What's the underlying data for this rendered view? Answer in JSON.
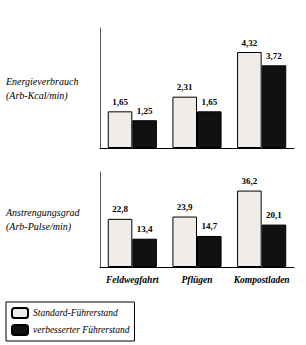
{
  "chart_data": [
    {
      "type": "bar",
      "ylabel": "Energieverbrauch\n(Arb-Kcal/min)",
      "categories": [
        null,
        null,
        null
      ],
      "series": [
        {
          "name": "Standard-Führerstand",
          "color": "#f0ede8",
          "values": [
            1.65,
            2.31,
            4.32
          ],
          "value_labels": [
            "1,65",
            "2,31",
            "4,32"
          ]
        },
        {
          "name": "verbesserter Führerstand",
          "color": "#111111",
          "values": [
            1.25,
            1.65,
            3.72
          ],
          "value_labels": [
            "1,25",
            "1,65",
            "3,72"
          ]
        }
      ],
      "ylim": [
        0,
        5.4
      ],
      "grid": false,
      "tick_labels": false,
      "data_labels": true
    },
    {
      "type": "bar",
      "ylabel": "Anstrengungsgrad\n(Arb-Pulse/min)",
      "categories": [
        "Feldwegfahrt",
        "Pflügen",
        "Kompostladen"
      ],
      "series": [
        {
          "name": "Standard-Führerstand",
          "color": "#f0ede8",
          "values": [
            22.8,
            23.9,
            36.2
          ],
          "value_labels": [
            "22,8",
            "23,9",
            "36,2"
          ]
        },
        {
          "name": "verbesserter Führerstand",
          "color": "#111111",
          "values": [
            13.4,
            14.7,
            20.1
          ],
          "value_labels": [
            "13,4",
            "14,7",
            "20,1"
          ]
        }
      ],
      "ylim": [
        0,
        45
      ],
      "grid": false,
      "tick_labels": "x",
      "data_labels": true,
      "legend": "lower left"
    }
  ]
}
